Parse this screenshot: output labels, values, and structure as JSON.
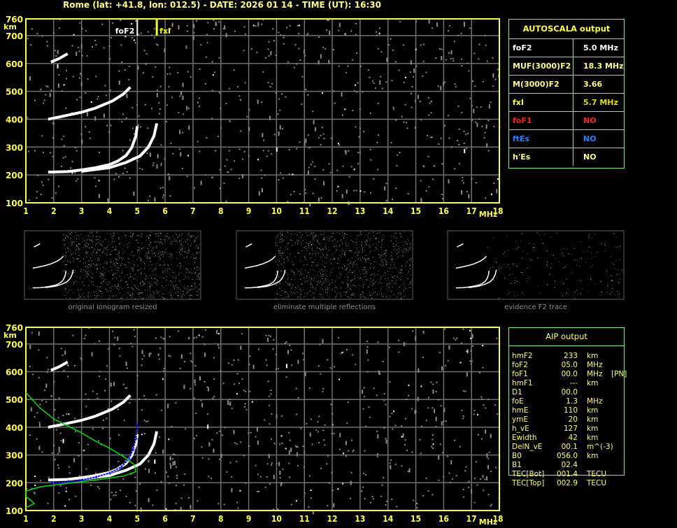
{
  "header": {
    "title": "Rome (lat: +41.8, lon: 012.5) - DATE: 2026 01 14 - TIME (UT): 16:30"
  },
  "colors": {
    "axis": "#ffff40",
    "grid": "#707070",
    "table_border": "#7cf07c",
    "trace": "#ffffff",
    "noise": "#8c8c8c",
    "aip_trace": "#0000ff",
    "profile": "#00e000",
    "foF1": "#ff2020",
    "ftEs": "#2080ff"
  },
  "autoscala": {
    "title": "AUTOSCALA output",
    "rows": [
      {
        "key": "foF2",
        "value": "5.0 MHz",
        "color": "#ffffff"
      },
      {
        "key": "MUF(3000)F2",
        "value": "18.3 MHz",
        "color": "#ffff80"
      },
      {
        "key": "M(3000)F2",
        "value": "3.66",
        "color": "#ffff80"
      },
      {
        "key": "fxI",
        "value": "5.7 MHz",
        "color": "#e0e000",
        "key_color": "#ffff40"
      },
      {
        "key": "foF1",
        "value": "NO",
        "color": "#ff2020"
      },
      {
        "key": "ftEs",
        "value": "NO",
        "color": "#2080ff"
      },
      {
        "key": "h'Es",
        "value": "NO",
        "color": "#ffff80"
      }
    ]
  },
  "aip": {
    "title": "AIP output",
    "rows": [
      [
        "hmF2",
        "233",
        "km",
        ""
      ],
      [
        "foF2",
        "05.0",
        "MHz",
        ""
      ],
      [
        "foF1",
        "00.0",
        "MHz",
        "[PN]"
      ],
      [
        "hmF1",
        "---",
        "km",
        ""
      ],
      [
        "D1",
        "00.0",
        "",
        ""
      ],
      [
        "foE",
        "1.3",
        "MHz",
        ""
      ],
      [
        "hmE",
        "110",
        "km",
        ""
      ],
      [
        "ymE",
        "20",
        "km",
        ""
      ],
      [
        "h_vE",
        "127",
        "km",
        ""
      ],
      [
        "Ewidth",
        "42",
        "km",
        ""
      ],
      [
        "DelN_vE",
        "00.1",
        "m^(-3)",
        ""
      ],
      [
        "B0",
        "056.0",
        "km",
        ""
      ],
      [
        "B1",
        "02.4",
        "",
        ""
      ],
      [
        "TEC[Bot]",
        "001.4",
        "TECU",
        ""
      ],
      [
        "TEC[Top]",
        "002.9",
        "TECU",
        ""
      ]
    ]
  },
  "thumbnails": [
    {
      "caption": "original ionogram resized"
    },
    {
      "caption": "eliminate multiple reflections"
    },
    {
      "caption": "evidence F2 trace"
    }
  ],
  "chart_data": [
    {
      "type": "scatter",
      "title": "",
      "xlabel": "MHz",
      "ylabel": "km",
      "xlim": [
        1,
        18
      ],
      "ylim": [
        100,
        760
      ],
      "xticks": [
        "1",
        "2",
        "3",
        "4",
        "5",
        "6",
        "7",
        "8",
        "9",
        "10",
        "11",
        "12",
        "13",
        "14",
        "15",
        "16",
        "17",
        "18"
      ],
      "yticks": [
        "100",
        "200",
        "300",
        "400",
        "500",
        "600",
        "700",
        "760"
      ],
      "grid": true,
      "markers": [
        {
          "label": "foF2",
          "x": 5.0,
          "color": "#ffffff"
        },
        {
          "label": "fxI",
          "x": 5.7,
          "color": "#ffff00"
        }
      ],
      "traces": [
        {
          "kind": "echo",
          "points": [
            [
              1.8,
              210
            ],
            [
              2.5,
              212
            ],
            [
              3,
              218
            ],
            [
              3.5,
              226
            ],
            [
              4,
              237
            ],
            [
              4.3,
              250
            ],
            [
              4.6,
              270
            ],
            [
              4.8,
              298
            ],
            [
              4.95,
              340
            ],
            [
              5.0,
              375
            ]
          ]
        },
        {
          "kind": "echo",
          "points": [
            [
              3,
              213
            ],
            [
              4,
              226
            ],
            [
              4.6,
              245
            ],
            [
              5.1,
              268
            ],
            [
              5.4,
              300
            ],
            [
              5.6,
              340
            ],
            [
              5.7,
              385
            ]
          ]
        },
        {
          "kind": "echo",
          "points": [
            [
              1.8,
              400
            ],
            [
              2.3,
              410
            ],
            [
              3,
              425
            ],
            [
              3.5,
              440
            ],
            [
              4.1,
              465
            ],
            [
              4.5,
              490
            ],
            [
              4.75,
              515
            ]
          ]
        },
        {
          "kind": "echo",
          "points": [
            [
              1.9,
              605
            ],
            [
              2.2,
              618
            ],
            [
              2.5,
              635
            ]
          ]
        }
      ]
    },
    {
      "type": "scatter",
      "title": "",
      "xlabel": "MHz",
      "ylabel": "km",
      "xlim": [
        1,
        18
      ],
      "ylim": [
        100,
        760
      ],
      "xticks": [
        "1",
        "2",
        "3",
        "4",
        "5",
        "6",
        "7",
        "8",
        "9",
        "10",
        "11",
        "12",
        "13",
        "14",
        "15",
        "16",
        "17",
        "18"
      ],
      "yticks": [
        "100",
        "200",
        "300",
        "400",
        "500",
        "600",
        "700",
        "760"
      ],
      "grid": true,
      "traces": [
        {
          "kind": "echo",
          "points": [
            [
              1.8,
              210
            ],
            [
              2.5,
              212
            ],
            [
              3,
              218
            ],
            [
              3.5,
              226
            ],
            [
              4,
              237
            ],
            [
              4.3,
              250
            ],
            [
              4.6,
              270
            ],
            [
              4.8,
              298
            ],
            [
              4.95,
              340
            ],
            [
              5.0,
              375
            ]
          ]
        },
        {
          "kind": "echo",
          "points": [
            [
              3,
              213
            ],
            [
              4,
              226
            ],
            [
              4.6,
              245
            ],
            [
              5.1,
              268
            ],
            [
              5.4,
              300
            ],
            [
              5.6,
              340
            ],
            [
              5.7,
              385
            ]
          ]
        },
        {
          "kind": "echo",
          "points": [
            [
              1.8,
              400
            ],
            [
              2.3,
              410
            ],
            [
              3,
              425
            ],
            [
              3.5,
              440
            ],
            [
              4.1,
              465
            ],
            [
              4.5,
              490
            ],
            [
              4.75,
              515
            ]
          ]
        },
        {
          "kind": "echo",
          "points": [
            [
              1.9,
              605
            ],
            [
              2.2,
              618
            ],
            [
              2.5,
              635
            ]
          ]
        },
        {
          "kind": "aip",
          "points": [
            [
              1.9,
              198
            ],
            [
              2.5,
              203
            ],
            [
              3,
              210
            ],
            [
              3.5,
              220
            ],
            [
              4,
              235
            ],
            [
              4.4,
              255
            ],
            [
              4.7,
              285
            ],
            [
              4.85,
              320
            ],
            [
              4.95,
              360
            ],
            [
              5.0,
              410
            ]
          ]
        },
        {
          "kind": "profile",
          "points": [
            [
              1,
              525
            ],
            [
              1.5,
              470
            ],
            [
              2,
              430
            ],
            [
              2.5,
              405
            ],
            [
              3,
              380
            ],
            [
              3.5,
              350
            ],
            [
              4,
              325
            ],
            [
              4.5,
              295
            ],
            [
              4.9,
              265
            ],
            [
              4.95,
              240
            ],
            [
              4.5,
              224
            ],
            [
              3.5,
              210
            ],
            [
              2.5,
              198
            ],
            [
              1.5,
              185
            ],
            [
              1,
              170
            ],
            [
              1,
              150
            ],
            [
              1.2,
              135
            ],
            [
              1.3,
              125
            ],
            [
              1.1,
              115
            ],
            [
              1,
              112
            ]
          ]
        }
      ]
    }
  ]
}
